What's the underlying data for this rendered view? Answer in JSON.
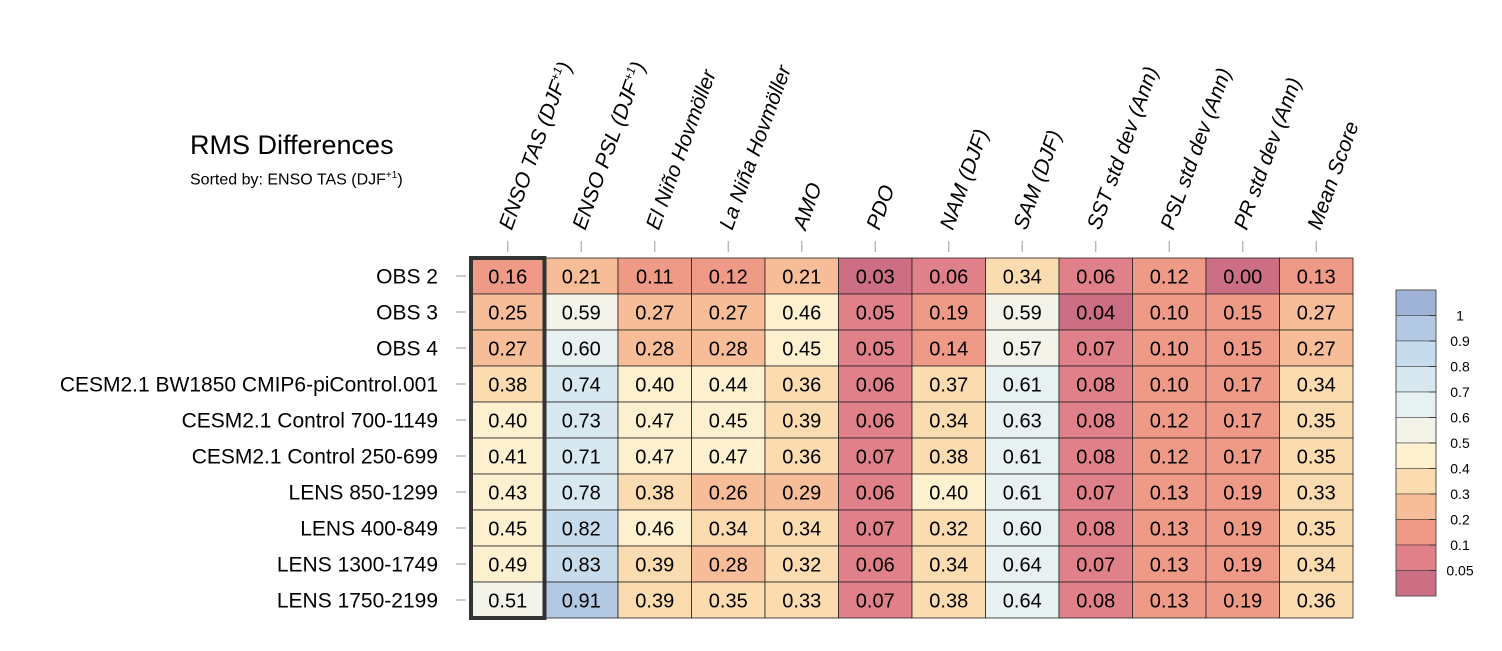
{
  "figure": {
    "title": "RMS Differences",
    "subtitle_prefix": "Sorted by: ENSO TAS (DJF",
    "subtitle_sup": "+1",
    "subtitle_suffix": ")"
  },
  "chart_data": {
    "type": "heatmap",
    "title": "RMS Differences",
    "subtitle": "Sorted by: ENSO TAS (DJF+1)",
    "sorted_by_column": 0,
    "columns": [
      {
        "label": "ENSO TAS (DJF",
        "sup": "+1",
        "suffix": ")"
      },
      {
        "label": "ENSO PSL (DJF",
        "sup": "+1",
        "suffix": ")"
      },
      {
        "label": "El Niño Hovmöller"
      },
      {
        "label": "La Niña Hovmöller"
      },
      {
        "label": "AMO"
      },
      {
        "label": "PDO"
      },
      {
        "label": "NAM (DJF)"
      },
      {
        "label": "SAM (DJF)"
      },
      {
        "label": "SST std dev (Ann)"
      },
      {
        "label": "PSL std dev (Ann)"
      },
      {
        "label": "PR std dev (Ann)"
      },
      {
        "label": "Mean Score"
      }
    ],
    "rows": [
      "OBS 2",
      "OBS 3",
      "OBS 4",
      "CESM2.1 BW1850 CMIP6-piControl.001",
      "CESM2.1 Control 700-1149",
      "CESM2.1 Control 250-699",
      "LENS 850-1299",
      "LENS 400-849",
      "LENS 1300-1749",
      "LENS 1750-2199"
    ],
    "values": [
      [
        "0.16",
        "0.21",
        "0.11",
        "0.12",
        "0.21",
        "0.03",
        "0.06",
        "0.34",
        "0.06",
        "0.12",
        "0.00",
        "0.13"
      ],
      [
        "0.25",
        "0.59",
        "0.27",
        "0.27",
        "0.46",
        "0.05",
        "0.19",
        "0.59",
        "0.04",
        "0.10",
        "0.15",
        "0.27"
      ],
      [
        "0.27",
        "0.60",
        "0.28",
        "0.28",
        "0.45",
        "0.05",
        "0.14",
        "0.57",
        "0.07",
        "0.10",
        "0.15",
        "0.27"
      ],
      [
        "0.38",
        "0.74",
        "0.40",
        "0.44",
        "0.36",
        "0.06",
        "0.37",
        "0.61",
        "0.08",
        "0.10",
        "0.17",
        "0.34"
      ],
      [
        "0.40",
        "0.73",
        "0.47",
        "0.45",
        "0.39",
        "0.06",
        "0.34",
        "0.63",
        "0.08",
        "0.12",
        "0.17",
        "0.35"
      ],
      [
        "0.41",
        "0.71",
        "0.47",
        "0.47",
        "0.36",
        "0.07",
        "0.38",
        "0.61",
        "0.08",
        "0.12",
        "0.17",
        "0.35"
      ],
      [
        "0.43",
        "0.78",
        "0.38",
        "0.26",
        "0.29",
        "0.06",
        "0.40",
        "0.61",
        "0.07",
        "0.13",
        "0.19",
        "0.33"
      ],
      [
        "0.45",
        "0.82",
        "0.46",
        "0.34",
        "0.34",
        "0.07",
        "0.32",
        "0.60",
        "0.08",
        "0.13",
        "0.19",
        "0.35"
      ],
      [
        "0.49",
        "0.83",
        "0.39",
        "0.28",
        "0.32",
        "0.06",
        "0.34",
        "0.64",
        "0.07",
        "0.13",
        "0.19",
        "0.34"
      ],
      [
        "0.51",
        "0.91",
        "0.39",
        "0.35",
        "0.33",
        "0.07",
        "0.38",
        "0.64",
        "0.08",
        "0.13",
        "0.19",
        "0.36"
      ]
    ],
    "colorbar": {
      "labels": [
        "1",
        "0.9",
        "0.8",
        "0.7",
        "0.6",
        "0.5",
        "0.4",
        "0.3",
        "0.2",
        "0.1",
        "0.05"
      ],
      "colors": [
        "#9fb3d6",
        "#b3c8e2",
        "#c6dcec",
        "#d8e8f1",
        "#e7f1f2",
        "#f3f3ea",
        "#fdf0cf",
        "#fbdcb1",
        "#f6bd98",
        "#ee9a86",
        "#e08088",
        "#cc6e84"
      ]
    }
  }
}
